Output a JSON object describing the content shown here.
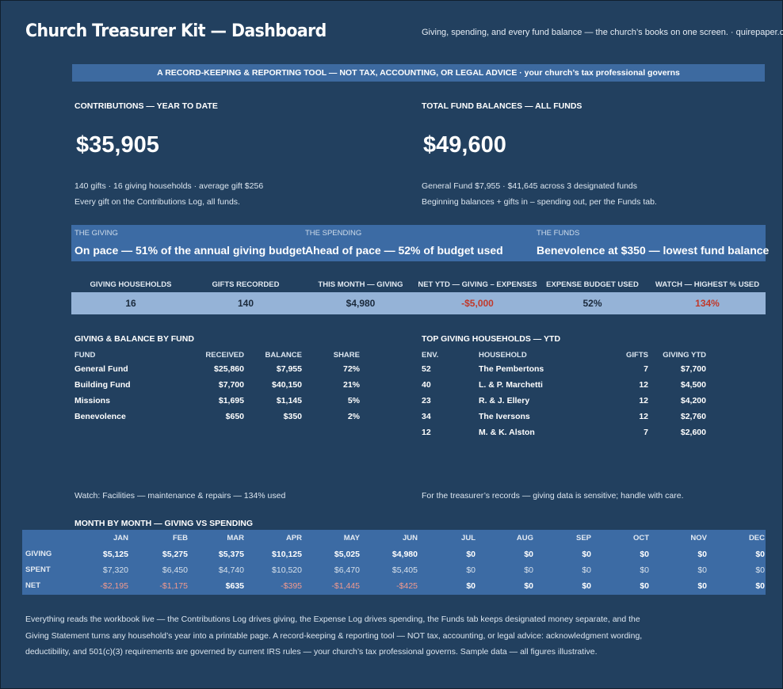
{
  "header": {
    "title": "Church Treasurer Kit — Dashboard",
    "subtitle": "Giving, spending, and every fund balance — the church’s books on one screen.  ·  quirepaper.com"
  },
  "banner": "A RECORD-KEEPING & REPORTING TOOL — NOT TAX, ACCOUNTING, OR LEGAL ADVICE  ·  your church’s tax professional governs",
  "contributions": {
    "label": "CONTRIBUTIONS — YEAR TO DATE",
    "value": "$35,905",
    "line1": "140 gifts  ·  16 giving households  ·  average gift $256",
    "line2": "Every gift on the Contributions Log, all funds."
  },
  "fund_balances": {
    "label": "TOTAL FUND BALANCES — ALL FUNDS",
    "value": "$49,600",
    "line1": "General Fund $7,955  ·  $41,645 across 3 designated funds",
    "line2": "Beginning balances + gifts in – spending out, per the Funds tab."
  },
  "callouts": [
    {
      "label": "THE GIVING",
      "text": "On pace — 51% of the annual giving budget"
    },
    {
      "label": "THE SPENDING",
      "text": "Ahead of pace — 52% of budget used"
    },
    {
      "label": "THE FUNDS",
      "text": "Benevolence at $350 — lowest fund balance"
    }
  ],
  "kpis": [
    {
      "label": "GIVING HOUSEHOLDS",
      "value": "16"
    },
    {
      "label": "GIFTS RECORDED",
      "value": "140"
    },
    {
      "label": "THIS MONTH — GIVING",
      "value": "$4,980"
    },
    {
      "label": "NET YTD — GIVING – EXPENSES",
      "value": "-$5,000"
    },
    {
      "label": "EXPENSE BUDGET USED",
      "value": "52%"
    },
    {
      "label": "WATCH — HIGHEST % USED",
      "value": "134%"
    }
  ],
  "fund_table": {
    "title": "GIVING & BALANCE BY FUND",
    "columns": [
      "FUND",
      "RECEIVED",
      "BALANCE",
      "SHARE"
    ],
    "rows": [
      [
        "General Fund",
        "$25,860",
        "$7,955",
        "72%"
      ],
      [
        "Building Fund",
        "$7,700",
        "$40,150",
        "21%"
      ],
      [
        "Missions",
        "$1,695",
        "$1,145",
        "5%"
      ],
      [
        "Benevolence",
        "$650",
        "$350",
        "2%"
      ]
    ]
  },
  "household_table": {
    "title": "TOP GIVING HOUSEHOLDS — YTD",
    "columns": [
      "ENV.",
      "HOUSEHOLD",
      "GIFTS",
      "GIVING YTD"
    ],
    "rows": [
      [
        "52",
        "The Pembertons",
        "7",
        "$7,700"
      ],
      [
        "40",
        "L. & P. Marchetti",
        "12",
        "$4,500"
      ],
      [
        "23",
        "R. & J. Ellery",
        "12",
        "$4,200"
      ],
      [
        "34",
        "The Iversons",
        "12",
        "$2,760"
      ],
      [
        "12",
        "M. & K. Alston",
        "7",
        "$2,600"
      ]
    ]
  },
  "notes": {
    "watch": "Watch: Facilities — maintenance & repairs — 134% used",
    "records": "For the treasurer’s records — giving data is sensitive; handle with care."
  },
  "monthly": {
    "title": "MONTH BY MONTH — GIVING VS SPENDING",
    "months": [
      "JAN",
      "FEB",
      "MAR",
      "APR",
      "MAY",
      "JUN",
      "JUL",
      "AUG",
      "SEP",
      "OCT",
      "NOV",
      "DEC"
    ],
    "rows": [
      {
        "label": "GIVING",
        "values": [
          "$5,125",
          "$5,275",
          "$5,375",
          "$10,125",
          "$5,025",
          "$4,980",
          "$0",
          "$0",
          "$0",
          "$0",
          "$0",
          "$0"
        ]
      },
      {
        "label": "SPENT",
        "values": [
          "$7,320",
          "$6,450",
          "$4,740",
          "$10,520",
          "$6,470",
          "$5,405",
          "$0",
          "$0",
          "$0",
          "$0",
          "$0",
          "$0"
        ]
      },
      {
        "label": "NET",
        "values": [
          "-$2,195",
          "-$1,175",
          "$635",
          "-$395",
          "-$1,445",
          "-$425",
          "$0",
          "$0",
          "$0",
          "$0",
          "$0",
          "$0"
        ]
      }
    ]
  },
  "footer": "Everything reads the workbook live — the Contributions Log drives giving, the Expense Log drives spending, the Funds tab keeps designated money separate, and the Giving Statement turns any household’s year into a printable page. A record-keeping & reporting tool — NOT tax, accounting, or legal advice: acknowledgment wording, deductibility, and 501(c)(3) requirements are governed by current IRS rules — your church’s tax professional governs. Sample data — all figures illustrative.",
  "colors": {
    "background": "#22405f",
    "band": "#3c6ba4",
    "kpi_band": "#95b3d7",
    "negative": "#c0392b"
  }
}
